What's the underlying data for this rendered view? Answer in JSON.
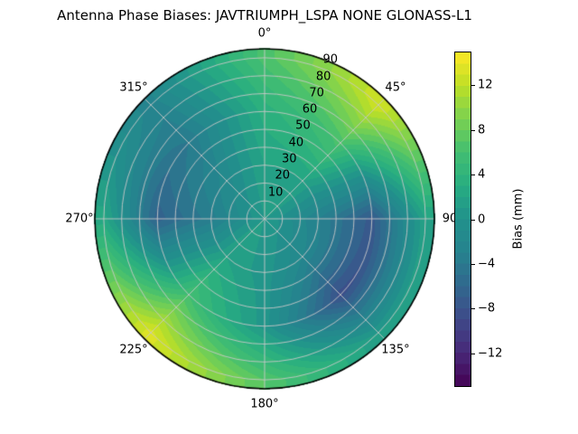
{
  "title": "Antenna Phase Biases: JAVTRIUMPH_LSPA NONE GLONASS-L1",
  "chart_data": {
    "type": "heatmap",
    "projection": "polar",
    "title": "Antenna Phase Biases: JAVTRIUMPH_LSPA NONE GLONASS-L1",
    "theta_zero": "north",
    "theta_direction": "clockwise",
    "angular_tick_degrees": [
      0,
      45,
      90,
      135,
      180,
      225,
      270,
      315
    ],
    "angular_tick_labels": [
      "0°",
      "45°",
      "90",
      "135°",
      "180°",
      "225°",
      "270°",
      "315°"
    ],
    "radial_ticks": [
      10,
      20,
      30,
      40,
      50,
      60,
      70,
      80,
      90
    ],
    "radial_max": 95,
    "rlabel_angle_deg": 22.5,
    "grid_on": true,
    "colormap": "viridis",
    "vmin": -15,
    "vmax": 15,
    "level_step_mm": 1,
    "colorbar": {
      "label": "Bias (mm)",
      "ticks": [
        12,
        8,
        4,
        0,
        -4,
        -8,
        -12
      ],
      "tick_labels": [
        "12",
        "8",
        "4",
        "0",
        "−4",
        "−8",
        "−12"
      ]
    },
    "grid": {
      "azimuth_deg": [
        0,
        45,
        90,
        135,
        180,
        225,
        270,
        315
      ],
      "zenith_deg": [
        0,
        30,
        60,
        90
      ],
      "bias_mm": [
        [
          1.0,
          2.0,
          3.5,
          6.5
        ],
        [
          1.0,
          2.0,
          6.5,
          13.0
        ],
        [
          1.0,
          -3.0,
          -7.5,
          2.0
        ],
        [
          1.0,
          -2.0,
          -8.5,
          1.0
        ],
        [
          1.0,
          0.5,
          0.5,
          7.0
        ],
        [
          1.0,
          2.0,
          6.0,
          13.5
        ],
        [
          1.0,
          -3.5,
          -6.5,
          2.5
        ],
        [
          1.0,
          -1.5,
          -4.0,
          -2.5
        ]
      ]
    },
    "viridis_stops": [
      {
        "t": 0.0,
        "c": "#440154"
      },
      {
        "t": 0.1,
        "c": "#482878"
      },
      {
        "t": 0.2,
        "c": "#3e4a89"
      },
      {
        "t": 0.3,
        "c": "#31688e"
      },
      {
        "t": 0.4,
        "c": "#26828e"
      },
      {
        "t": 0.5,
        "c": "#21918c"
      },
      {
        "t": 0.6,
        "c": "#27ad81"
      },
      {
        "t": 0.7,
        "c": "#42be71"
      },
      {
        "t": 0.8,
        "c": "#7ad151"
      },
      {
        "t": 0.9,
        "c": "#bddf26"
      },
      {
        "t": 1.0,
        "c": "#fde725"
      }
    ],
    "style": {
      "grid_color": "#c8c8c8",
      "rim_color": "#000000",
      "background": "#ffffff"
    }
  }
}
